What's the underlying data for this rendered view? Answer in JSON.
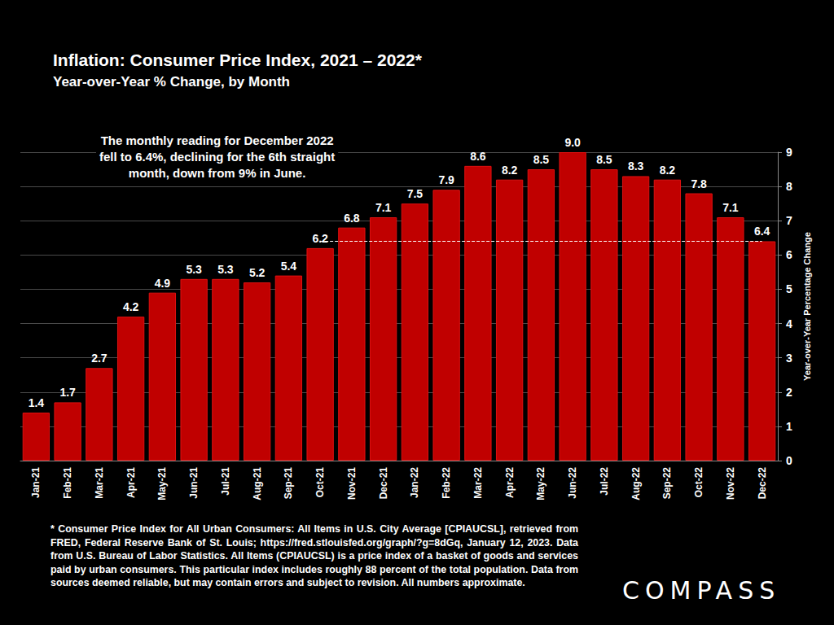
{
  "chart_data": {
    "type": "bar",
    "title": "Inflation: Consumer Price Index, 2021 – 2022*",
    "subtitle": "Year-over-Year % Change, by Month",
    "categories": [
      "Jan-21",
      "Feb-21",
      "Mar-21",
      "Apr-21",
      "May-21",
      "Jun-21",
      "Jul-21",
      "Aug-21",
      "Sep-21",
      "Oct-21",
      "Nov-21",
      "Dec-21",
      "Jan-22",
      "Feb-22",
      "Mar-22",
      "Apr-22",
      "May-22",
      "Jun-22",
      "Jul-22",
      "Aug-22",
      "Sep-22",
      "Oct-22",
      "Nov-22",
      "Dec-22"
    ],
    "values": [
      1.4,
      1.7,
      2.7,
      4.2,
      4.9,
      5.3,
      5.3,
      5.2,
      5.4,
      6.2,
      6.8,
      7.1,
      7.5,
      7.9,
      8.6,
      8.2,
      8.5,
      9.0,
      8.5,
      8.3,
      8.2,
      7.8,
      7.1,
      6.4
    ],
    "value_labels": [
      "1.4",
      "1.7",
      "2.7",
      "4.2",
      "4.9",
      "5.3",
      "5.3",
      "5.2",
      "5.4",
      "6.2",
      "6.8",
      "7.1",
      "7.5",
      "7.9",
      "8.6",
      "8.2",
      "8.5",
      "9.0",
      "8.5",
      "8.3",
      "8.2",
      "7.8",
      "7.1",
      "6.4"
    ],
    "color": "#c00000",
    "ylim": [
      0,
      9
    ],
    "yticks": [
      0,
      1,
      2,
      3,
      4,
      5,
      6,
      7,
      8,
      9
    ],
    "y_label": "Year-over-Year Percentage Change",
    "grid": true,
    "data_labels": true,
    "annotation": [
      "The monthly reading for December 2022",
      "fell to 6.4%, declining for the 6th straight",
      "month, down from 9% in June."
    ],
    "reference_line": {
      "value": 6.4,
      "start": "Oct-21",
      "end": "Dec-22",
      "line_style": "dashed"
    },
    "footnote": "* Consumer Price Index for All Urban Consumers: All Items in U.S. City Average [CPIAUCSL], retrieved from FRED, Federal Reserve Bank of St. Louis; https://fred.stlouisfed.org/graph/?g=8dGq, January 12, 2023. Data from U.S. Bureau of Labor Statistics. All Items (CPIAUCSL) is a price index of a basket of goods and services paid by urban consumers. This particular index includes roughly 88 percent of the total population. Data from sources deemed reliable, but may contain errors and subject to revision. All numbers approximate.",
    "brand": "COMPASS"
  }
}
